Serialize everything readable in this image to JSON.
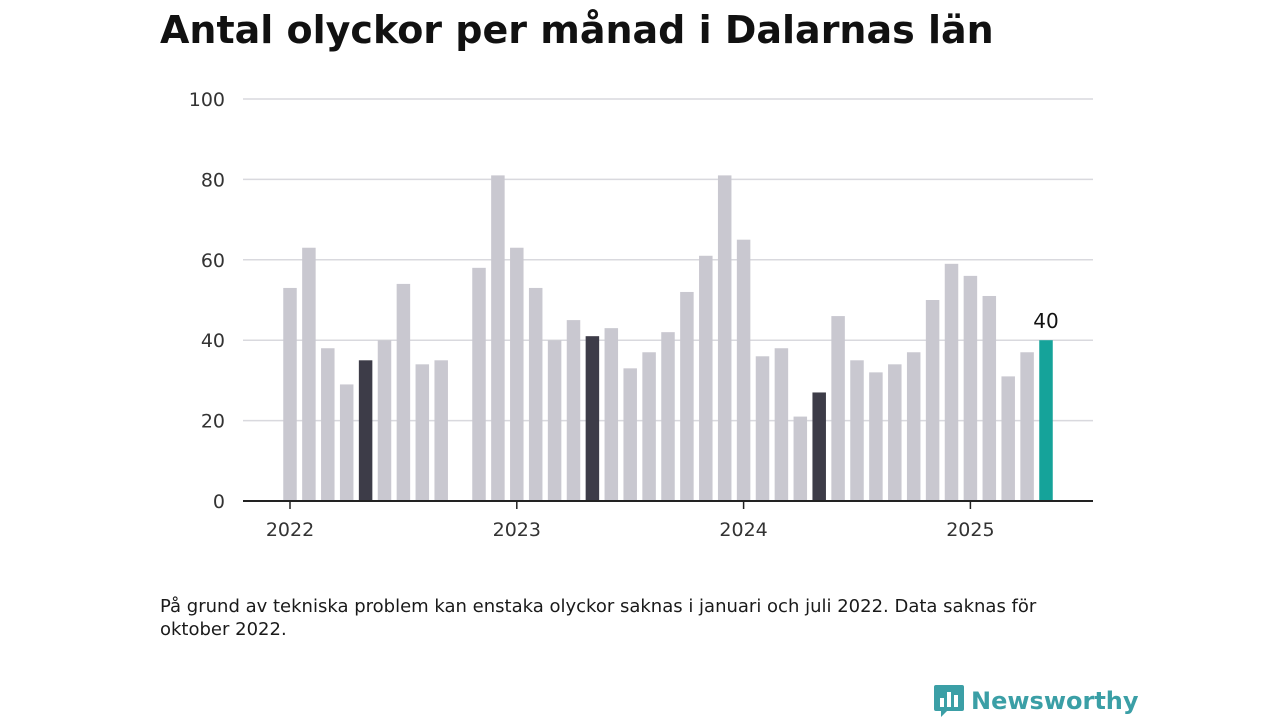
{
  "title": "Antal olyckor per månad i Dalarnas län",
  "note": "På grund av tekniska problem kan enstaka olyckor saknas i januari och juli 2022. Data saknas för oktober 2022.",
  "brand": "Newsworthy",
  "colors": {
    "bar": "#c9c8d0",
    "highlight": "#3d3c48",
    "latest": "#15a39a",
    "grid": "#d9d9de",
    "axis": "#222222",
    "brand": "#3b9fa6"
  },
  "chart_data": {
    "type": "bar",
    "x": [
      "2022-01",
      "2022-02",
      "2022-03",
      "2022-04",
      "2022-05",
      "2022-06",
      "2022-07",
      "2022-08",
      "2022-09",
      "2022-10",
      "2022-11",
      "2022-12",
      "2023-01",
      "2023-02",
      "2023-03",
      "2023-04",
      "2023-05",
      "2023-06",
      "2023-07",
      "2023-08",
      "2023-09",
      "2023-10",
      "2023-11",
      "2023-12",
      "2024-01",
      "2024-02",
      "2024-03",
      "2024-04",
      "2024-05",
      "2024-06",
      "2024-07",
      "2024-08",
      "2024-09",
      "2024-10",
      "2024-11",
      "2024-12",
      "2025-01",
      "2025-02",
      "2025-03",
      "2025-04",
      "2025-05"
    ],
    "values": [
      53,
      63,
      38,
      29,
      35,
      40,
      54,
      34,
      35,
      null,
      58,
      81,
      63,
      53,
      40,
      45,
      41,
      43,
      33,
      37,
      42,
      52,
      61,
      81,
      65,
      36,
      38,
      21,
      27,
      46,
      35,
      32,
      34,
      37,
      50,
      59,
      56,
      51,
      31,
      37,
      40
    ],
    "highlighted": [
      "2022-05",
      "2023-05",
      "2024-05"
    ],
    "latest": "2025-05",
    "latest_label": "40",
    "ylim": [
      0,
      100
    ],
    "yticks": [
      "0",
      "20",
      "40",
      "60",
      "80",
      "100"
    ],
    "xticks": [
      "2022",
      "2023",
      "2024",
      "2025"
    ],
    "grid": true,
    "xlabel": "",
    "ylabel": ""
  }
}
